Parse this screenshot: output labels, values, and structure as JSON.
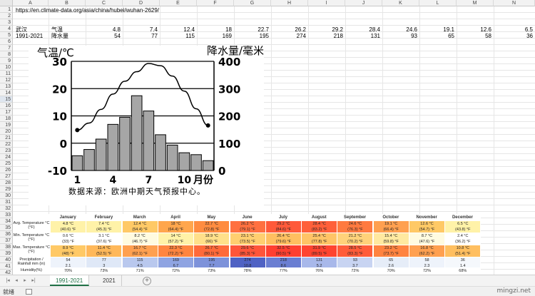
{
  "url": "https://en.climate-data.org/asia/china/hubei/wuhan-2629/",
  "columns": [
    "A",
    "B",
    "C",
    "D",
    "E",
    "F",
    "G",
    "H",
    "I",
    "J",
    "K",
    "L",
    "M",
    "N"
  ],
  "rows": [
    "1",
    "2",
    "3",
    "4",
    "5",
    "6",
    "7",
    "8",
    "9",
    "10",
    "11",
    "12",
    "13",
    "14",
    "15",
    "16",
    "17",
    "18",
    "19",
    "20",
    "21",
    "22",
    "23",
    "24",
    "25",
    "26",
    "27",
    "28",
    "29",
    "30",
    "31",
    "32",
    "33",
    "34",
    "35",
    "36",
    "37",
    "38",
    "39",
    "40",
    "41",
    "42"
  ],
  "row4": {
    "city": "武汉",
    "label": "气温",
    "values": [
      "4.8",
      "7.4",
      "12.4",
      "18",
      "22.7",
      "26.2",
      "29.2",
      "28.4",
      "24.6",
      "19.1",
      "12.6",
      "6.5"
    ]
  },
  "row5": {
    "period": "1991-2021",
    "label": "降水量",
    "values": [
      "54",
      "77",
      "115",
      "169",
      "195",
      "274",
      "218",
      "131",
      "93",
      "65",
      "58",
      "36"
    ]
  },
  "chart_data": {
    "type": "bar+line",
    "categories": [
      "1",
      "2",
      "3",
      "4",
      "5",
      "6",
      "7",
      "8",
      "9",
      "10",
      "11",
      "12"
    ],
    "series": [
      {
        "values": [
          4.8,
          7.4,
          12.4,
          18,
          22.7,
          26.2,
          29.2,
          28.4,
          24.6,
          19.1,
          12.6,
          6.5
        ]
      },
      {
        "values": [
          54,
          77,
          115,
          169,
          195,
          274,
          218,
          131,
          93,
          65,
          58,
          36
        ]
      }
    ],
    "ylabel_left": "气温/℃",
    "ylabel_right": "降水量/毫米",
    "left_ticks": [
      "30",
      "20",
      "10",
      "0",
      "-10"
    ],
    "right_ticks": [
      "400",
      "300",
      "200",
      "100",
      "0"
    ],
    "x_ticks": [
      "1",
      "4",
      "7",
      "10",
      "月份"
    ],
    "ylim_left": [
      -10,
      30
    ],
    "ylim_right": [
      0,
      400
    ],
    "bar_color": "#a6a6a6",
    "line_color": "#000000"
  },
  "source_note": "数据来源：欧洲中期天气预报中心。",
  "climate_table": {
    "months": [
      "January",
      "February",
      "March",
      "April",
      "May",
      "June",
      "July",
      "August",
      "September",
      "October",
      "November",
      "December"
    ],
    "rows": [
      {
        "label": "Avg. Temperature °C (°F)",
        "cells": [
          [
            "4.8 °C",
            "(40.6) °F"
          ],
          [
            "7.4 °C",
            "(45.3) °F"
          ],
          [
            "12.4 °C",
            "(54.4) °F"
          ],
          [
            "18 °C",
            "(64.4) °F"
          ],
          [
            "22.7 °C",
            "(72.8) °F"
          ],
          [
            "26.2 °C",
            "(79.1) °F"
          ],
          [
            "29.2 °C",
            "(84.6) °F"
          ],
          [
            "28.4 °C",
            "(83.2) °F"
          ],
          [
            "24.6 °C",
            "(76.3) °F"
          ],
          [
            "19.1 °C",
            "(66.4) °F"
          ],
          [
            "12.6 °C",
            "(54.7) °F"
          ],
          [
            "6.5 °C",
            "(43.8) °F"
          ]
        ],
        "colors": [
          "#fff2a8",
          "#fff2a8",
          "#ffc966",
          "#ffa64d",
          "#ff8c40",
          "#ff7040",
          "#ff5a3a",
          "#ff603a",
          "#ff7a40",
          "#ffa050",
          "#ffc966",
          "#fff2a8"
        ]
      },
      {
        "label": "Min. Temperature °C (°F)",
        "cells": [
          [
            "0.6 °C",
            "(33) °F"
          ],
          [
            "3.1 °C",
            "(37.6) °F"
          ],
          [
            "8.2 °C",
            "(46.7) °F"
          ],
          [
            "14 °C",
            "(57.2) °F"
          ],
          [
            "18.9 °C",
            "(66) °F"
          ],
          [
            "23.1 °C",
            "(73.5) °F"
          ],
          [
            "26.4 °C",
            "(79.6) °F"
          ],
          [
            "25.4 °C",
            "(77.8) °F"
          ],
          [
            "21.2 °C",
            "(70.2) °F"
          ],
          [
            "15.4 °C",
            "(59.8) °F"
          ],
          [
            "8.7 °C",
            "(47.6) °F"
          ],
          [
            "2.4 °C",
            "(36.2) °F"
          ]
        ],
        "colors": [
          "#ffffff",
          "#ffffff",
          "#fffbe0",
          "#fff2a8",
          "#ffe08a",
          "#ffcf70",
          "#ffbf60",
          "#ffc466",
          "#ffd27a",
          "#ffe9a0",
          "#fffbe0",
          "#ffffff"
        ]
      },
      {
        "label": "Max. Temperature °C (°F)",
        "cells": [
          [
            "8.9 °C",
            "(48) °F"
          ],
          [
            "11.4 °C",
            "(52.5) °F"
          ],
          [
            "16.7 °C",
            "(62.1) °F"
          ],
          [
            "22.3 °C",
            "(72.2) °F"
          ],
          [
            "26.7 °C",
            "(80.1) °F"
          ],
          [
            "29.6 °C",
            "(85.3) °F"
          ],
          [
            "32.5 °C",
            "(90.5) °F"
          ],
          [
            "31.9 °C",
            "(89.5) °F"
          ],
          [
            "28.5 °C",
            "(83.3) °F"
          ],
          [
            "23.2 °C",
            "(73.7) °F"
          ],
          [
            "16.8 °C",
            "(62.2) °F"
          ],
          [
            "10.8 °C",
            "(51.4) °F"
          ]
        ],
        "colors": [
          "#ffc966",
          "#ffb85a",
          "#ffa050",
          "#ff8540",
          "#ff6a3a",
          "#ff553a",
          "#ff3f30",
          "#ff4430",
          "#ff5c3a",
          "#ff8340",
          "#ffa050",
          "#ffbf60"
        ]
      },
      {
        "label": "Precipitation / Rainfall mm (in)",
        "cells": [
          [
            "54",
            "2.1"
          ],
          [
            "77",
            "3"
          ],
          [
            "115",
            "4.5"
          ],
          [
            "169",
            "6.7"
          ],
          [
            "195",
            "7.7"
          ],
          [
            "274",
            "10.8"
          ],
          [
            "218",
            "8.6"
          ],
          [
            "131",
            "5.2"
          ],
          [
            "93",
            "3.7"
          ],
          [
            "65",
            "2.6"
          ],
          [
            "58",
            "2.3"
          ],
          [
            "36",
            "1.4"
          ]
        ],
        "colors": [
          "#eef3fb",
          "#dfe8f7",
          "#b9c8ee",
          "#8fa4e2",
          "#7d92da",
          "#4f62c4",
          "#6a7ed2",
          "#a8b8ea",
          "#c8d4f2",
          "#e6edf8",
          "#eef3fb",
          "#f5f8fc"
        ]
      },
      {
        "label": "Humidity(%)",
        "cells": [
          [
            "70%"
          ],
          [
            "73%"
          ],
          [
            "71%"
          ],
          [
            "72%"
          ],
          [
            "73%"
          ],
          [
            "78%"
          ],
          [
            "77%"
          ],
          [
            "76%"
          ],
          [
            "72%"
          ],
          [
            "70%"
          ],
          [
            "72%"
          ],
          [
            "68%"
          ]
        ],
        "colors": [
          "#ffffff",
          "#ffffff",
          "#ffffff",
          "#ffffff",
          "#ffffff",
          "#ffffff",
          "#ffffff",
          "#ffffff",
          "#ffffff",
          "#ffffff",
          "#ffffff",
          "#ffffff"
        ]
      }
    ]
  },
  "tabs": [
    {
      "label": "1991-2021",
      "active": true
    },
    {
      "label": "2021",
      "active": false
    }
  ],
  "add_tab": "+",
  "status_text": "就绪",
  "watermark": "mingzi.net"
}
